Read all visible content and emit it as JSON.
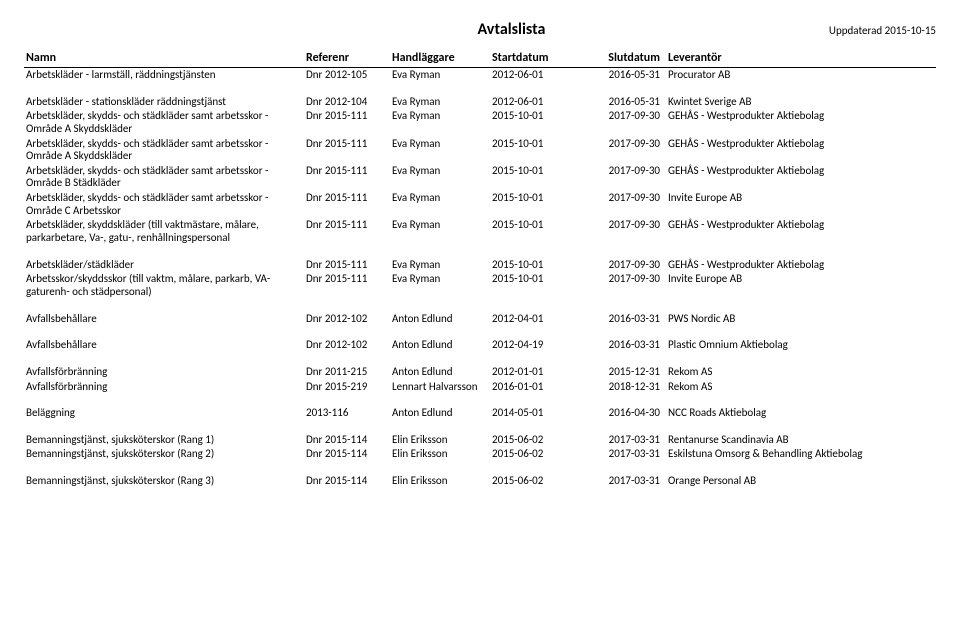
{
  "header": {
    "title": "Avtalslista",
    "updated": "Uppdaterad 2015-10-15"
  },
  "columns": {
    "name": "Namn",
    "ref": "Referenr",
    "handler": "Handläggare",
    "start": "Startdatum",
    "end": "Slutdatum",
    "supplier": "Leverantör"
  },
  "groups": [
    {
      "rows": [
        {
          "name": "Arbetskläder - larmställ, räddningstjänsten",
          "ref": "Dnr 2012-105",
          "handler": "Eva Ryman",
          "start": "2012-06-01",
          "end": "2016-05-31",
          "supplier": "Procurator AB"
        }
      ]
    },
    {
      "rows": [
        {
          "name": "Arbetskläder - stationskläder räddningstjänst",
          "ref": "Dnr 2012-104",
          "handler": "Eva Ryman",
          "start": "2012-06-01",
          "end": "2016-05-31",
          "supplier": "Kwintet Sverige AB"
        },
        {
          "name": "Arbetskläder, skydds- och städkläder samt arbetsskor - Område A Skyddskläder",
          "ref": "Dnr 2015-111",
          "handler": "Eva Ryman",
          "start": "2015-10-01",
          "end": "2017-09-30",
          "supplier": "GEHÅS - Westprodukter Aktiebolag"
        },
        {
          "name": "Arbetskläder, skydds- och städkläder samt arbetsskor - Område A Skyddskläder",
          "ref": "Dnr 2015-111",
          "handler": "Eva Ryman",
          "start": "2015-10-01",
          "end": "2017-09-30",
          "supplier": "GEHÅS - Westprodukter Aktiebolag"
        },
        {
          "name": "Arbetskläder, skydds- och städkläder samt arbetsskor - Område B Städkläder",
          "ref": "Dnr 2015-111",
          "handler": "Eva Ryman",
          "start": "2015-10-01",
          "end": "2017-09-30",
          "supplier": "GEHÅS - Westprodukter Aktiebolag"
        },
        {
          "name": "Arbetskläder, skydds- och städkläder samt arbetsskor - Område C Arbetsskor",
          "ref": "Dnr 2015-111",
          "handler": "Eva Ryman",
          "start": "2015-10-01",
          "end": "2017-09-30",
          "supplier": "Invite Europe AB"
        },
        {
          "name": "Arbetskläder, skyddskläder (till vaktmästare, målare, parkarbetare, Va-, gatu-, renhållningspersonal",
          "ref": "Dnr 2015-111",
          "handler": "Eva Ryman",
          "start": "2015-10-01",
          "end": "2017-09-30",
          "supplier": "GEHÅS - Westprodukter Aktiebolag"
        }
      ]
    },
    {
      "rows": [
        {
          "name": "Arbetskläder/städkläder",
          "ref": "Dnr 2015-111",
          "handler": "Eva Ryman",
          "start": "2015-10-01",
          "end": "2017-09-30",
          "supplier": "GEHÅS - Westprodukter Aktiebolag"
        },
        {
          "name": "Arbetsskor/skyddsskor (till vaktm, målare, parkarb, VA- gaturenh- och städpersonal)",
          "ref": "Dnr 2015-111",
          "handler": "Eva Ryman",
          "start": "2015-10-01",
          "end": "2017-09-30",
          "supplier": "Invite Europe AB"
        }
      ]
    },
    {
      "rows": [
        {
          "name": "Avfallsbehållare",
          "ref": "Dnr 2012-102",
          "handler": "Anton Edlund",
          "start": "2012-04-01",
          "end": "2016-03-31",
          "supplier": "PWS Nordic AB"
        }
      ]
    },
    {
      "rows": [
        {
          "name": "Avfallsbehållare",
          "ref": "Dnr 2012-102",
          "handler": "Anton Edlund",
          "start": "2012-04-19",
          "end": "2016-03-31",
          "supplier": "Plastic Omnium Aktiebolag"
        }
      ]
    },
    {
      "rows": [
        {
          "name": "Avfallsförbränning",
          "ref": "Dnr 2011-215",
          "handler": "Anton Edlund",
          "start": "2012-01-01",
          "end": "2015-12-31",
          "supplier": "Rekom AS"
        },
        {
          "name": "Avfallsförbränning",
          "ref": "Dnr 2015-219",
          "handler": "Lennart Halvarsson",
          "start": "2016-01-01",
          "end": "2018-12-31",
          "supplier": "Rekom AS"
        }
      ]
    },
    {
      "rows": [
        {
          "name": "Beläggning",
          "ref": "2013-116",
          "handler": "Anton Edlund",
          "start": "2014-05-01",
          "end": "2016-04-30",
          "supplier": "NCC Roads Aktiebolag"
        }
      ]
    },
    {
      "rows": [
        {
          "name": "Bemanningstjänst, sjuksköterskor (Rang 1)",
          "ref": "Dnr 2015-114",
          "handler": "Elin Eriksson",
          "start": "2015-06-02",
          "end": "2017-03-31",
          "supplier": "Rentanurse Scandinavia AB"
        },
        {
          "name": "Bemanningstjänst, sjuksköterskor (Rang 2)",
          "ref": "Dnr 2015-114",
          "handler": "Elin Eriksson",
          "start": "2015-06-02",
          "end": "2017-03-31",
          "supplier": "Eskilstuna Omsorg & Behandling Aktiebolag"
        }
      ]
    },
    {
      "rows": [
        {
          "name": "Bemanningstjänst, sjuksköterskor (Rang 3)",
          "ref": "Dnr 2015-114",
          "handler": "Elin Eriksson",
          "start": "2015-06-02",
          "end": "2017-03-31",
          "supplier": "Orange Personal AB"
        }
      ]
    }
  ]
}
